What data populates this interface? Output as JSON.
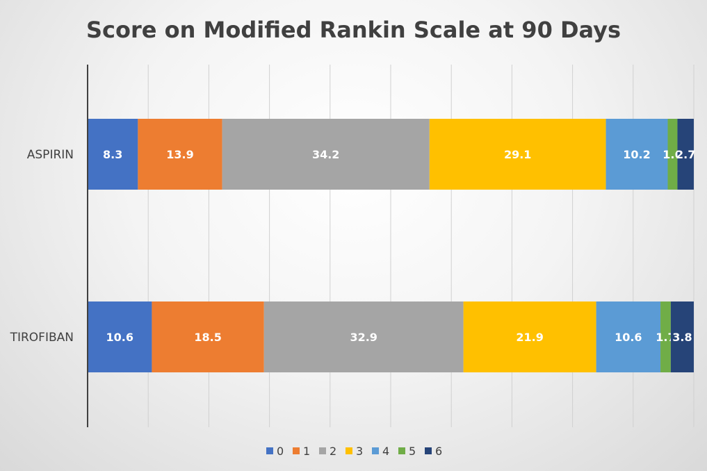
{
  "chart_data": {
    "type": "bar",
    "orientation": "horizontal",
    "stacked": true,
    "title": "Score on Modified Rankin Scale at 90 Days",
    "categories": [
      "ASPIRIN",
      "TIROFIBAN"
    ],
    "series": [
      {
        "name": "0",
        "color": "#4472C4",
        "values": [
          8.3,
          10.6
        ]
      },
      {
        "name": "1",
        "color": "#ED7D31",
        "values": [
          13.9,
          18.5
        ]
      },
      {
        "name": "2",
        "color": "#A5A5A5",
        "values": [
          34.2,
          32.9
        ]
      },
      {
        "name": "3",
        "color": "#FFC000",
        "values": [
          29.1,
          21.9
        ]
      },
      {
        "name": "4",
        "color": "#5B9BD5",
        "values": [
          10.2,
          10.6
        ]
      },
      {
        "name": "5",
        "color": "#70AD47",
        "values": [
          1.6,
          1.7
        ]
      },
      {
        "name": "6",
        "color": "#264478",
        "values": [
          2.7,
          3.8
        ]
      }
    ],
    "xlim": [
      0,
      100
    ],
    "grid": true,
    "legend_position": "bottom"
  }
}
